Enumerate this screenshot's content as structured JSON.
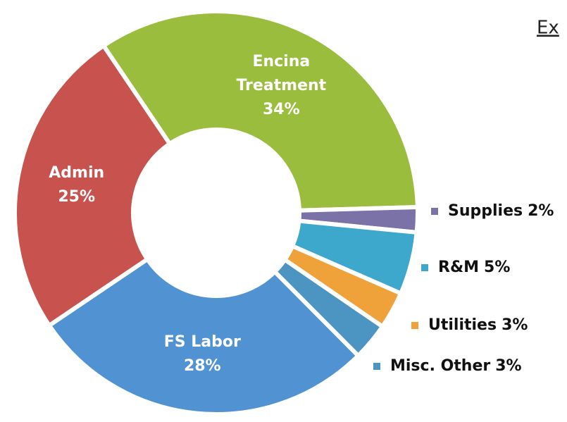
{
  "chart_data": {
    "type": "donut",
    "subtitle": "Ex",
    "categories": [
      "Encina Treatment",
      "Supplies",
      "R&M",
      "Utilities",
      "Misc. Other",
      "FS Labor",
      "Admin"
    ],
    "values": [
      34,
      2,
      5,
      3,
      3,
      28,
      25
    ],
    "value_labels": [
      "34%",
      "2%",
      "5%",
      "3%",
      "3%",
      "28%",
      "25%"
    ],
    "colors": [
      "#9bbd3e",
      "#7b72a8",
      "#3ea8cc",
      "#efa23a",
      "#4c95c2",
      "#5192d2",
      "#c8524e"
    ]
  }
}
